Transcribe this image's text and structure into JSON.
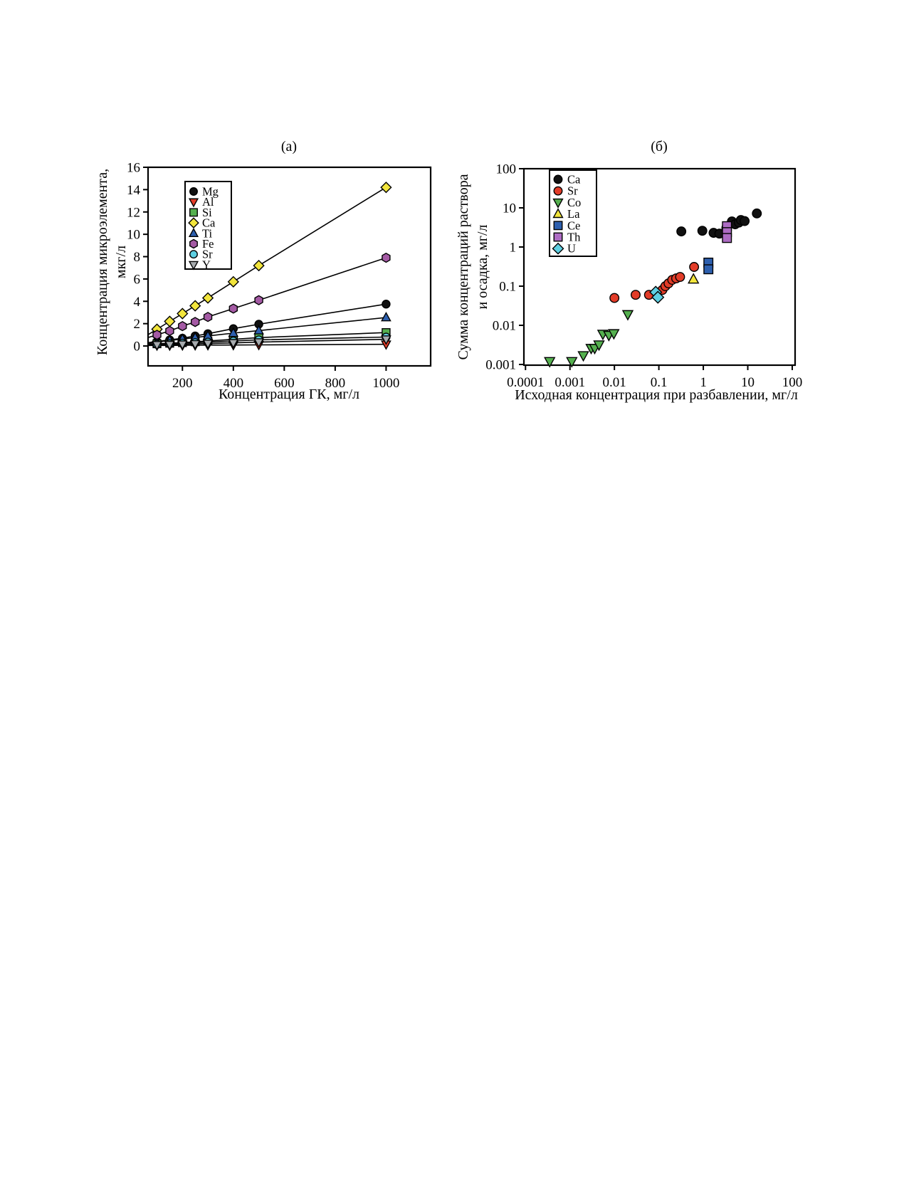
{
  "figure": {
    "panel_a_title": "(a)",
    "panel_b_title": "(б)"
  },
  "chart_data": [
    {
      "type": "line",
      "title": "(a)",
      "xlabel": "Концентрация ГК, мг/л",
      "ylabel": "Концентрация микроэлемента, мкг/л",
      "ylabel_lines": [
        "Концентрация микроэлемента,",
        "мкг/л"
      ],
      "xscale": "linear",
      "yscale": "linear",
      "xlim": [
        65,
        1175
      ],
      "ylim": [
        -1.78,
        16
      ],
      "xticks": [
        "200",
        "400",
        "600",
        "800",
        "1000"
      ],
      "yticks": [
        "0",
        "2",
        "4",
        "6",
        "8",
        "10",
        "12",
        "14",
        "16"
      ],
      "grid": false,
      "legend_position": "upper-left-inside",
      "x": [
        100,
        150,
        200,
        250,
        300,
        400,
        500,
        1000
      ],
      "series": [
        {
          "name": "Mg",
          "marker": "circle",
          "color": "#111111",
          "values": [
            0.4,
            0.55,
            0.7,
            0.9,
            1.1,
            1.55,
            1.95,
            3.75
          ]
        },
        {
          "name": "Al",
          "marker": "triangle-down",
          "color": "#e23c28",
          "values": [
            0.05,
            0.05,
            0.06,
            0.07,
            0.08,
            0.09,
            0.1,
            0.15
          ]
        },
        {
          "name": "Si",
          "marker": "square",
          "color": "#55b04f",
          "values": [
            0.2,
            0.25,
            0.3,
            0.38,
            0.45,
            0.6,
            0.75,
            1.2
          ]
        },
        {
          "name": "Ca",
          "marker": "diamond",
          "color": "#f2e53c",
          "values": [
            1.5,
            2.2,
            2.9,
            3.6,
            4.3,
            5.75,
            7.2,
            14.2
          ]
        },
        {
          "name": "Ti",
          "marker": "triangle-up",
          "color": "#2d5fae",
          "values": [
            0.35,
            0.5,
            0.62,
            0.75,
            0.9,
            1.15,
            1.38,
            2.55
          ]
        },
        {
          "name": "Fe",
          "marker": "hexagon",
          "color": "#a45aa4",
          "values": [
            1.0,
            1.35,
            1.78,
            2.15,
            2.6,
            3.35,
            4.1,
            7.9
          ]
        },
        {
          "name": "Sr",
          "marker": "circle",
          "color": "#5ecfe2",
          "values": [
            0.15,
            0.2,
            0.25,
            0.3,
            0.35,
            0.45,
            0.55,
            0.8
          ]
        },
        {
          "name": "Y",
          "marker": "triangle-down",
          "color": "#a7abae",
          "values": [
            0.1,
            0.12,
            0.15,
            0.18,
            0.22,
            0.28,
            0.35,
            0.6
          ]
        }
      ]
    },
    {
      "type": "scatter",
      "title": "(б)",
      "xlabel": "Исходная концентрация при разбавлении, мг/л",
      "ylabel": "Сумма концентраций раствора и осадка, мг/л",
      "ylabel_lines": [
        "Сумма концентраций раствора",
        "и осадка, мг/л"
      ],
      "xscale": "log",
      "yscale": "log",
      "xlim": [
        9.2e-05,
        116
      ],
      "ylim": [
        0.00096,
        100
      ],
      "xticks": [
        "0.0001",
        "0.001",
        "0.01",
        "0.1",
        "1",
        "10",
        "100"
      ],
      "yticks": [
        "0.001",
        "0.01",
        "0.1",
        "1",
        "10",
        "100"
      ],
      "grid": false,
      "legend_position": "upper-left-inside",
      "series": [
        {
          "name": "Ca",
          "marker": "circle",
          "color": "#111111",
          "points": [
            [
              0.32,
              2.5
            ],
            [
              0.95,
              2.6
            ],
            [
              1.7,
              2.3
            ],
            [
              2.3,
              2.2
            ],
            [
              3.3,
              3.1
            ],
            [
              4.4,
              4.5
            ],
            [
              5.2,
              3.8
            ],
            [
              6.3,
              4.2
            ],
            [
              7,
              4.9
            ],
            [
              8.5,
              4.6
            ],
            [
              16,
              7.2
            ]
          ]
        },
        {
          "name": "Sr",
          "marker": "circle",
          "color": "#e23c28",
          "points": [
            [
              0.01,
              0.05
            ],
            [
              0.03,
              0.06
            ],
            [
              0.06,
              0.06
            ],
            [
              0.12,
              0.08
            ],
            [
              0.14,
              0.1
            ],
            [
              0.165,
              0.118
            ],
            [
              0.2,
              0.145
            ],
            [
              0.245,
              0.158
            ],
            [
              0.3,
              0.172
            ],
            [
              0.62,
              0.31
            ]
          ]
        },
        {
          "name": "Co",
          "marker": "triangle-down",
          "color": "#55b04f",
          "points": [
            [
              0.00035,
              0.0012
            ],
            [
              0.0011,
              0.0012
            ],
            [
              0.002,
              0.0017
            ],
            [
              0.003,
              0.0026
            ],
            [
              0.0036,
              0.0026
            ],
            [
              0.0045,
              0.0032
            ],
            [
              0.0055,
              0.006
            ],
            [
              0.0075,
              0.0056
            ],
            [
              0.0097,
              0.0062
            ],
            [
              0.02,
              0.019
            ]
          ]
        },
        {
          "name": "La",
          "marker": "triangle-up",
          "color": "#f2e53c",
          "points": [
            [
              0.6,
              0.15
            ]
          ]
        },
        {
          "name": "Ce",
          "marker": "square",
          "color": "#2d5fae",
          "points": [
            [
              1.3,
              0.4
            ],
            [
              1.3,
              0.27
            ]
          ]
        },
        {
          "name": "Th",
          "marker": "square",
          "color": "#ad6cc3",
          "points": [
            [
              3.4,
              3.4
            ],
            [
              3.4,
              2.4
            ],
            [
              3.4,
              1.7
            ]
          ]
        },
        {
          "name": "U",
          "marker": "diamond",
          "color": "#5ecfe2",
          "points": [
            [
              0.085,
              0.07
            ],
            [
              0.095,
              0.052
            ]
          ]
        }
      ]
    }
  ]
}
